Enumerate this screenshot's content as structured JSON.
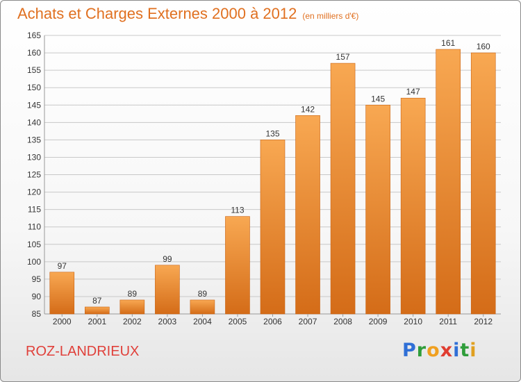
{
  "title": "Achats et Charges Externes 2000 à 2012",
  "unit": "(en milliers d'€)",
  "place": "ROZ-LANDRIEUX",
  "logo": {
    "text": "Proxiti",
    "letters": [
      {
        "char": "P",
        "color": "#2f6fd6"
      },
      {
        "char": "r",
        "color": "#2f9d3a"
      },
      {
        "char": "o",
        "color": "#f0a020"
      },
      {
        "char": "x",
        "color": "#e03c30"
      },
      {
        "char": "i",
        "color": "#2f6fd6"
      },
      {
        "char": "t",
        "color": "#2f9d3a"
      },
      {
        "char": "i",
        "color": "#e0a020"
      }
    ]
  },
  "colors": {
    "bar_light": "#f8a852",
    "bar_dark": "#d46c18",
    "title": "#e07020",
    "place": "#e0403a",
    "grid": "#c8c8c8"
  },
  "chart_data": {
    "type": "bar",
    "title": "Achats et Charges Externes 2000 à 2012",
    "subtitle": "(en milliers d'€)",
    "xlabel": "",
    "ylabel": "",
    "categories": [
      "2000",
      "2001",
      "2002",
      "2003",
      "2004",
      "2005",
      "2006",
      "2007",
      "2008",
      "2009",
      "2010",
      "2011",
      "2012"
    ],
    "values": [
      97,
      87,
      89,
      99,
      89,
      113,
      135,
      142,
      157,
      145,
      147,
      161,
      160
    ],
    "data_labels": [
      "97",
      "87",
      "89",
      "99",
      "89",
      "113",
      "135",
      "142",
      "157",
      "145",
      "147",
      "161",
      "160"
    ],
    "ylim": [
      85,
      165
    ],
    "yticks": [
      85,
      90,
      95,
      100,
      105,
      110,
      115,
      120,
      125,
      130,
      135,
      140,
      145,
      150,
      155,
      160,
      165
    ],
    "grid": true,
    "legend": "none"
  }
}
